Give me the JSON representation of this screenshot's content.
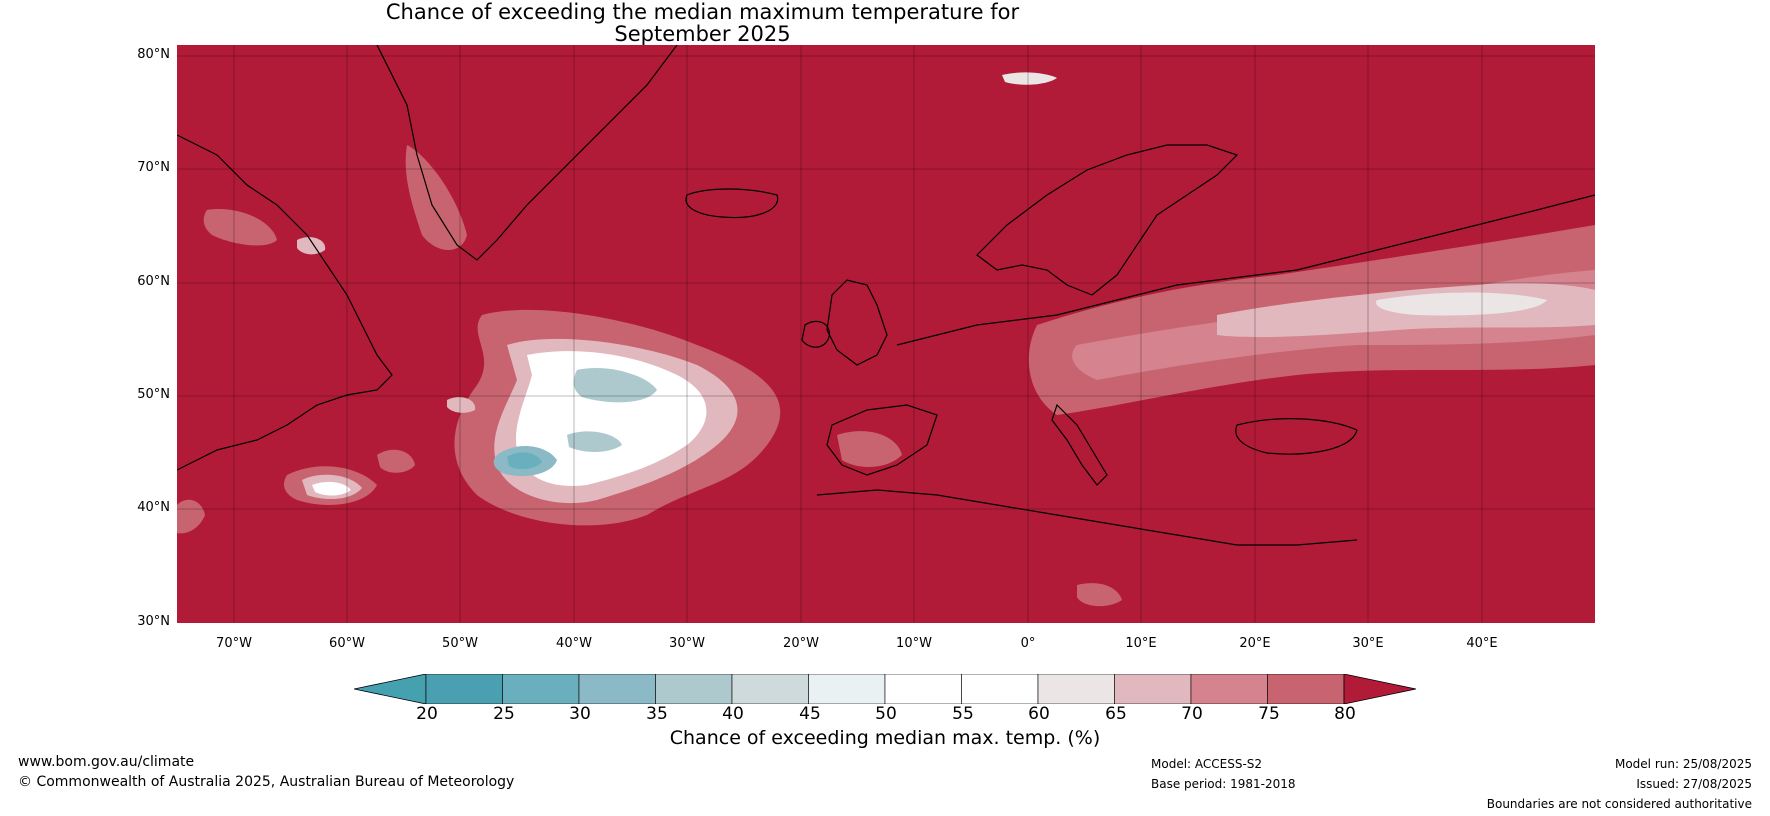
{
  "title_line1": "Chance of exceeding the median maximum temperature for",
  "title_line2": "September 2025",
  "lat_labels": [
    "80°N",
    "70°N",
    "60°N",
    "50°N",
    "40°N",
    "30°N"
  ],
  "lon_labels": [
    "70°W",
    "60°W",
    "50°W",
    "40°W",
    "30°W",
    "20°W",
    "10°W",
    "0°",
    "10°E",
    "20°E",
    "30°E",
    "40°E"
  ],
  "extent": {
    "lon_min": -75,
    "lon_max": 50,
    "lat_min": 30,
    "lat_max": 81
  },
  "colors": {
    "background_field": "#b21b37",
    "land_edge": "#000000",
    "borders": "#808080"
  },
  "colorbar": {
    "ticks": [
      "20",
      "25",
      "30",
      "35",
      "40",
      "45",
      "50",
      "55",
      "60",
      "65",
      "70",
      "75",
      "80"
    ],
    "colors": [
      "#4aa0b1",
      "#6aafbd",
      "#8bbac6",
      "#adc9ce",
      "#cfdadd",
      "#e9f1f2",
      "#ffffff",
      "#ffffff",
      "#ebe5e6",
      "#e2b8bf",
      "#d4838f",
      "#c8646f",
      "#bc3f4f"
    ],
    "low_extend_color": "#45a0b0",
    "high_extend_color": "#b21b37",
    "label": "Chance of exceeding median max. temp. (%)"
  },
  "footer": {
    "website": "www.bom.gov.au/climate",
    "copyright": "© Commonwealth of Australia 2025, Australian Bureau of Meteorology",
    "model": "Model: ACCESS-S2",
    "base_period": "Base period: 1981-2018",
    "model_run": "Model run: 25/08/2025",
    "issued": "Issued: 27/08/2025",
    "disclaimer": "Boundaries are not considered authoritative"
  }
}
